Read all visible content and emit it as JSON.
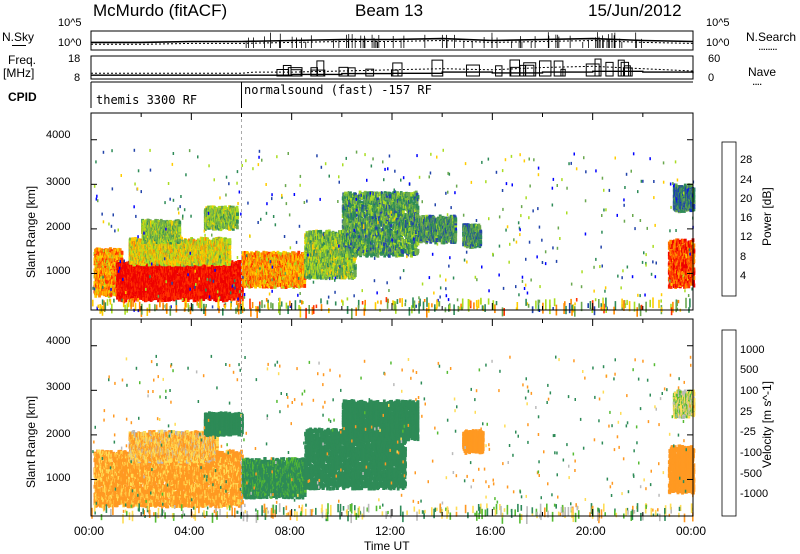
{
  "header": {
    "station": "McMurdo (fitACF)",
    "beam": "Beam 13",
    "date": "15/Jun/2012"
  },
  "top_panels": {
    "nsky_label": "N.Sky",
    "nsearch_label": "N.Search",
    "nsearch_dots": "........",
    "noise_ticks_left": [
      "10^5",
      "10^0"
    ],
    "noise_ticks_right": [
      "10^5",
      "10^0"
    ],
    "freq_label": "Freq.",
    "freq_unit": "[MHz]",
    "freq_ticks_left": [
      "18",
      "8"
    ],
    "nave_label": "Nave",
    "nave_dots": "....",
    "nave_ticks_right": [
      "60",
      "0"
    ],
    "cpid_label": "CPID",
    "cpid_segments": [
      {
        "start_hour": 0.0,
        "text": "themis 3300 RF"
      },
      {
        "start_hour": 6.0,
        "text": "normalsound (fast) -157 RF"
      }
    ]
  },
  "power_panel": {
    "ylabel": "Slant Range [km]",
    "yticks": [
      "4000",
      "3000",
      "2000",
      "1000"
    ],
    "colorbar_label": "Power [dB]",
    "colorbar_ticks": [
      "28",
      "24",
      "20",
      "16",
      "12",
      "8",
      "4"
    ],
    "colorbar_colors": [
      "#0000ff",
      "#2244aa",
      "#2e8b57",
      "#6aa84f",
      "#aadd22",
      "#ffcc00",
      "#ff8800",
      "#ff3300",
      "#ee0000"
    ]
  },
  "velocity_panel": {
    "ylabel": "Slant Range [km]",
    "yticks": [
      "4000",
      "3000",
      "2000",
      "1000"
    ],
    "colorbar_label": "Velocity [m s^-1]",
    "colorbar_ticks": [
      "1000",
      "500",
      "100",
      "25",
      "-25",
      "-100",
      "-500",
      "-1000"
    ],
    "colorbar_colors": [
      "#1133cc",
      "#2266bb",
      "#2e8b57",
      "#55bb33",
      "#bbbbbb",
      "#ffdd55",
      "#ff9922",
      "#ff5511",
      "#ee0000"
    ]
  },
  "xaxis": {
    "xlabel": "Time UT",
    "ticks": [
      "00:00",
      "04:00",
      "08:00",
      "12:00",
      "16:00",
      "20:00",
      "00:00"
    ]
  },
  "chart_data": [
    {
      "type": "line",
      "name": "noise",
      "x_range_hours": [
        0,
        24
      ],
      "series": [
        {
          "name": "N.Sky",
          "x": [
            0,
            2,
            4,
            6,
            8,
            10,
            12,
            14,
            16,
            18,
            20,
            22,
            24
          ],
          "y": [
            0.4,
            0.4,
            0.45,
            0.45,
            0.5,
            0.55,
            0.55,
            0.6,
            0.5,
            0.55,
            0.6,
            0.5,
            0.45
          ]
        },
        {
          "name": "N.Search",
          "x": [
            0,
            2,
            4,
            6,
            8,
            10,
            12,
            14,
            16,
            18,
            20,
            22,
            24
          ],
          "y": [
            0.3,
            0.3,
            0.35,
            0.35,
            0.4,
            0.45,
            0.45,
            0.5,
            0.4,
            0.45,
            0.5,
            0.4,
            0.35
          ]
        }
      ]
    },
    {
      "type": "line",
      "name": "frequency-nave",
      "x_range_hours": [
        0,
        24
      ],
      "series": [
        {
          "name": "Freq",
          "x": [
            0,
            6,
            6.5,
            8,
            10,
            12,
            14,
            16,
            18,
            20,
            22,
            24
          ],
          "y": [
            10.5,
            10.5,
            11.0,
            11.0,
            11.5,
            12.0,
            12.5,
            12.0,
            13.0,
            13.5,
            12.5,
            11.5
          ]
        },
        {
          "name": "Nave",
          "x": [
            0,
            6,
            8,
            10,
            12,
            14,
            16,
            18,
            20,
            22,
            24
          ],
          "y": [
            10,
            10,
            12,
            14,
            15,
            18,
            16,
            18,
            20,
            18,
            15
          ]
        }
      ]
    },
    {
      "type": "heatmap",
      "name": "power",
      "x_unit": "hours UT",
      "y_unit": "km",
      "xlim": [
        0,
        24
      ],
      "ylim": [
        180,
        4600
      ],
      "cbar_range": [
        0,
        32
      ],
      "blobs": [
        {
          "t0": 0.1,
          "t1": 1.2,
          "r0": 600,
          "r1": 1600,
          "value": 22
        },
        {
          "t0": 1.0,
          "t1": 6.0,
          "r0": 500,
          "r1": 1300,
          "value": 30
        },
        {
          "t0": 1.5,
          "t1": 5.5,
          "r0": 1300,
          "r1": 1800,
          "value": 18
        },
        {
          "t0": 2.0,
          "t1": 3.5,
          "r0": 1800,
          "r1": 2200,
          "value": 14
        },
        {
          "t0": 4.5,
          "t1": 5.8,
          "r0": 2100,
          "r1": 2500,
          "value": 14
        },
        {
          "t0": 6.0,
          "t1": 8.5,
          "r0": 800,
          "r1": 1500,
          "value": 22
        },
        {
          "t0": 8.5,
          "t1": 10.5,
          "r0": 1000,
          "r1": 2000,
          "value": 14
        },
        {
          "t0": 10.0,
          "t1": 13.0,
          "r0": 1500,
          "r1": 2900,
          "value": 11
        },
        {
          "t0": 13.0,
          "t1": 14.5,
          "r0": 1800,
          "r1": 2300,
          "value": 10
        },
        {
          "t0": 14.8,
          "t1": 15.5,
          "r0": 1700,
          "r1": 2100,
          "value": 10
        },
        {
          "t0": 23.0,
          "t1": 24.0,
          "r0": 800,
          "r1": 1800,
          "value": 26
        },
        {
          "t0": 23.2,
          "t1": 24.0,
          "r0": 2500,
          "r1": 3000,
          "value": 8
        }
      ]
    },
    {
      "type": "heatmap",
      "name": "velocity",
      "x_unit": "hours UT",
      "y_unit": "km",
      "xlim": [
        0,
        24
      ],
      "ylim": [
        180,
        4600
      ],
      "cbar_range": [
        -1000,
        1000
      ],
      "blobs": [
        {
          "t0": 0.1,
          "t1": 6.0,
          "r0": 500,
          "r1": 1700,
          "value": -150
        },
        {
          "t0": 1.5,
          "t1": 5.0,
          "r0": 1500,
          "r1": 2100,
          "value": -100
        },
        {
          "t0": 6.0,
          "t1": 8.5,
          "r0": 700,
          "r1": 1500,
          "value": 150
        },
        {
          "t0": 8.5,
          "t1": 12.5,
          "r0": 900,
          "r1": 2200,
          "value": 200
        },
        {
          "t0": 10.0,
          "t1": 13.0,
          "r0": 2000,
          "r1": 2800,
          "value": 200
        },
        {
          "t0": 14.8,
          "t1": 15.6,
          "r0": 1700,
          "r1": 2100,
          "value": -300
        },
        {
          "t0": 4.5,
          "t1": 6.0,
          "r0": 2100,
          "r1": 2500,
          "value": 200
        },
        {
          "t0": 23.0,
          "t1": 24.0,
          "r0": 800,
          "r1": 1800,
          "value": -200
        },
        {
          "t0": 23.2,
          "t1": 24.0,
          "r0": 2500,
          "r1": 3000,
          "value": 0
        }
      ]
    }
  ]
}
